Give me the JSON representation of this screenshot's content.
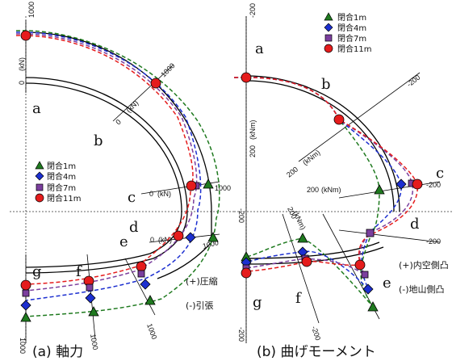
{
  "legend": {
    "items": [
      {
        "label": "閉合1m",
        "color": "#1f7a1f",
        "marker": "triangle"
      },
      {
        "label": "閉合4m",
        "color": "#1c2fd0",
        "marker": "diamond"
      },
      {
        "label": "閉合7m",
        "color": "#7b3f9e",
        "marker": "square"
      },
      {
        "label": "閉合11m",
        "color": "#e51c1c",
        "marker": "circle"
      }
    ]
  },
  "panels": [
    {
      "caption": "(a) 軸力",
      "points": [
        "a",
        "b",
        "c",
        "d",
        "e",
        "f",
        "g"
      ],
      "axis_labels": [
        "(kN)",
        "(kN)",
        "(kN)",
        "(kN)"
      ],
      "tick_values": [
        "0",
        "1000",
        "0",
        "1000",
        "0",
        "1000",
        "0",
        "1000",
        "1000",
        "1000",
        "1000",
        "1000"
      ],
      "sign_notes": [
        "(+)圧縮",
        "(-)引張"
      ]
    },
    {
      "caption": "(b) 曲げモーメント",
      "points": [
        "a",
        "b",
        "c",
        "d",
        "e",
        "f",
        "g"
      ],
      "axis_labels": [
        "(kNm)",
        "(kNm)",
        "(kNm)",
        "(kNm)"
      ],
      "tick_values": [
        "-200",
        "-200",
        "200",
        "200",
        "-200",
        "-200",
        "200",
        "200",
        "-200",
        "-200",
        "-200"
      ],
      "sign_notes": [
        "(+)内空側凸",
        "(-)地山側凸"
      ]
    }
  ]
}
